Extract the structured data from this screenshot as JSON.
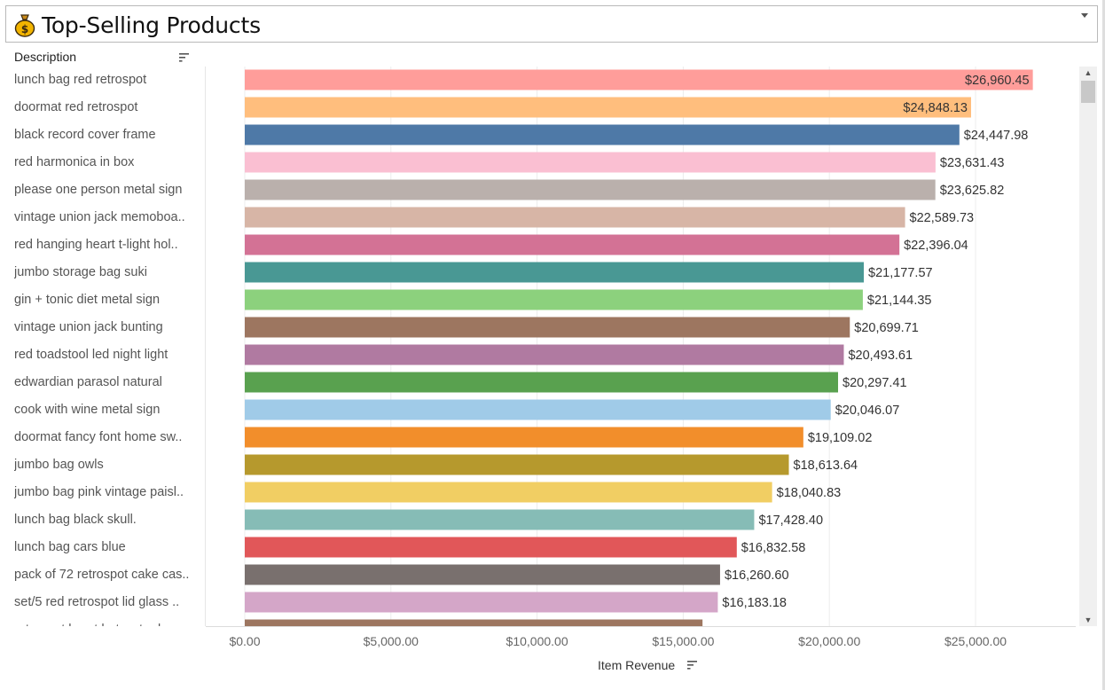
{
  "title": {
    "text": "Top-Selling Products",
    "icon": "money-bag-icon"
  },
  "chart_data": {
    "type": "bar",
    "orientation": "horizontal",
    "row_header": "Description",
    "xlabel": "Item Revenue",
    "xlim": [
      0,
      28000
    ],
    "x_ticks": [
      {
        "value": 0,
        "label": "$0.00"
      },
      {
        "value": 5000,
        "label": "$5,000.00"
      },
      {
        "value": 10000,
        "label": "$10,000.00"
      },
      {
        "value": 15000,
        "label": "$15,000.00"
      },
      {
        "value": 20000,
        "label": "$20,000.00"
      },
      {
        "value": 25000,
        "label": "$25,000.00"
      }
    ],
    "categories": [
      "lunch bag red retrospot",
      "doormat red retrospot",
      "black record cover frame",
      "red  harmonica in box",
      "please one person metal sign",
      "vintage union jack memoboa..",
      "red hanging heart t-light hol..",
      "jumbo storage bag suki",
      "gin + tonic diet metal sign",
      "vintage union jack bunting",
      "red toadstool led night light",
      "edwardian parasol natural",
      "cook with wine metal sign",
      "doormat fancy font home sw..",
      "jumbo bag owls",
      "jumbo bag pink vintage paisl..",
      "lunch bag  black skull.",
      "lunch bag cars blue",
      "pack of 72 retrospot cake cas..",
      "set/5 red retrospot lid glass ..",
      "retrospot heart hot water bo.."
    ],
    "values": [
      26960.45,
      24848.13,
      24447.98,
      23631.43,
      23625.82,
      22589.73,
      22396.04,
      21177.57,
      21144.35,
      20699.71,
      20493.61,
      20297.41,
      20046.07,
      19109.02,
      18613.64,
      18040.83,
      17428.4,
      16832.58,
      16260.6,
      16183.18,
      15660
    ],
    "value_labels": [
      "$26,960.45",
      "$24,848.13",
      "$24,447.98",
      "$23,631.43",
      "$23,625.82",
      "$22,589.73",
      "$22,396.04",
      "$21,177.57",
      "$21,144.35",
      "$20,699.71",
      "$20,493.61",
      "$20,297.41",
      "$20,046.07",
      "$19,109.02",
      "$18,613.64",
      "$18,040.83",
      "$17,428.40",
      "$16,832.58",
      "$16,260.60",
      "$16,183.18",
      ""
    ],
    "colors": [
      "#ff9d9a",
      "#ffbe7d",
      "#4e79a7",
      "#fabfd2",
      "#bab0ac",
      "#d7b5a6",
      "#d37295",
      "#499894",
      "#8cd17d",
      "#9d7660",
      "#b07aa1",
      "#59a14f",
      "#a0cbe8",
      "#f28e2b",
      "#b6992d",
      "#f1ce63",
      "#86bcb6",
      "#e15759",
      "#79706e",
      "#d4a6c8",
      "#9d7660"
    ],
    "grid": true
  },
  "scrollbar": {
    "up": "▲",
    "down": "▼"
  }
}
